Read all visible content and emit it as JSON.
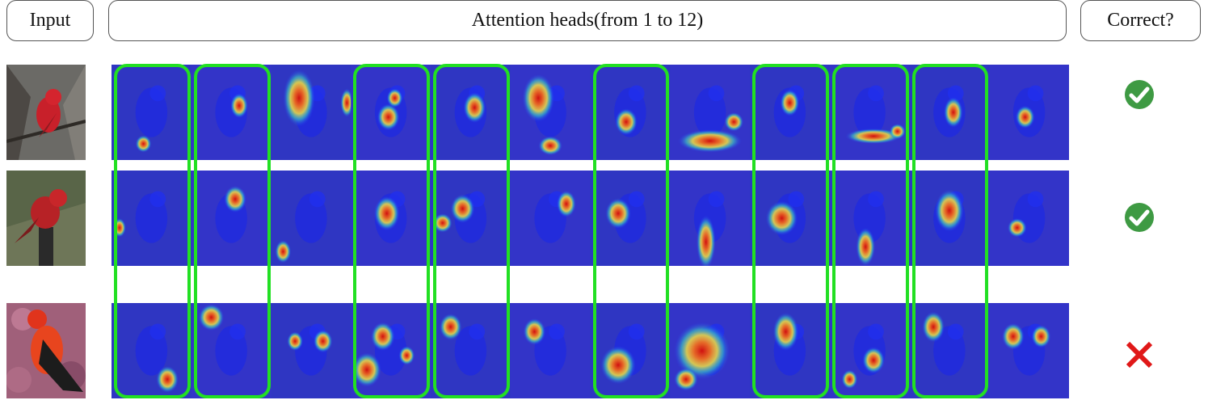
{
  "headers": {
    "input": "Input",
    "heads": "Attention heads(from 1 to 12)",
    "correct": "Correct?"
  },
  "heads_count": 12,
  "highlighted_heads": [
    1,
    2,
    4,
    5,
    7,
    9,
    10,
    11
  ],
  "rows": [
    {
      "name": "row-1",
      "correct": true,
      "thumb_bg": "#6b6a66",
      "hotspots": [
        [
          [
            0.4,
            0.83,
            0.1,
            0.09
          ]
        ],
        [
          [
            0.6,
            0.43,
            0.11,
            0.13
          ]
        ],
        [
          [
            0.35,
            0.35,
            0.2,
            0.3
          ],
          [
            0.95,
            0.4,
            0.08,
            0.15
          ]
        ],
        [
          [
            0.47,
            0.55,
            0.14,
            0.14
          ],
          [
            0.55,
            0.35,
            0.1,
            0.1
          ]
        ],
        [
          [
            0.55,
            0.45,
            0.14,
            0.16
          ]
        ],
        [
          [
            0.35,
            0.35,
            0.2,
            0.25
          ],
          [
            0.5,
            0.85,
            0.15,
            0.1
          ]
        ],
        [
          [
            0.45,
            0.6,
            0.14,
            0.14
          ]
        ],
        [
          [
            0.5,
            0.8,
            0.4,
            0.12
          ],
          [
            0.8,
            0.6,
            0.12,
            0.1
          ]
        ],
        [
          [
            0.5,
            0.4,
            0.12,
            0.14
          ]
        ],
        [
          [
            0.55,
            0.75,
            0.35,
            0.08
          ],
          [
            0.85,
            0.7,
            0.1,
            0.08
          ]
        ],
        [
          [
            0.55,
            0.5,
            0.12,
            0.16
          ]
        ],
        [
          [
            0.45,
            0.55,
            0.12,
            0.12
          ]
        ]
      ]
    },
    {
      "name": "row-2",
      "correct": true,
      "thumb_bg": "#6e7658",
      "hotspots": [
        [
          [
            0.1,
            0.6,
            0.08,
            0.1
          ]
        ],
        [
          [
            0.55,
            0.3,
            0.14,
            0.14
          ]
        ],
        [
          [
            0.15,
            0.85,
            0.1,
            0.12
          ]
        ],
        [
          [
            0.45,
            0.45,
            0.16,
            0.18
          ]
        ],
        [
          [
            0.15,
            0.55,
            0.12,
            0.1
          ],
          [
            0.4,
            0.4,
            0.15,
            0.15
          ]
        ],
        [
          [
            0.7,
            0.35,
            0.12,
            0.14
          ]
        ],
        [
          [
            0.35,
            0.45,
            0.16,
            0.16
          ]
        ],
        [
          [
            0.45,
            0.75,
            0.12,
            0.28
          ]
        ],
        [
          [
            0.4,
            0.5,
            0.2,
            0.18
          ]
        ],
        [
          [
            0.45,
            0.8,
            0.12,
            0.2
          ]
        ],
        [
          [
            0.5,
            0.42,
            0.18,
            0.22
          ]
        ],
        [
          [
            0.35,
            0.6,
            0.12,
            0.1
          ]
        ]
      ]
    },
    {
      "name": "row-3",
      "correct": false,
      "thumb_bg": "#a0607a",
      "hotspots": [
        [
          [
            0.7,
            0.8,
            0.14,
            0.14
          ]
        ],
        [
          [
            0.25,
            0.15,
            0.16,
            0.14
          ]
        ],
        [
          [
            0.65,
            0.4,
            0.12,
            0.12
          ],
          [
            0.3,
            0.4,
            0.1,
            0.1
          ]
        ],
        [
          [
            0.4,
            0.35,
            0.15,
            0.15
          ],
          [
            0.2,
            0.7,
            0.18,
            0.18
          ],
          [
            0.7,
            0.55,
            0.1,
            0.1
          ]
        ],
        [
          [
            0.25,
            0.25,
            0.14,
            0.14
          ]
        ],
        [
          [
            0.3,
            0.3,
            0.14,
            0.14
          ]
        ],
        [
          [
            0.35,
            0.65,
            0.22,
            0.2
          ]
        ],
        [
          [
            0.4,
            0.5,
            0.35,
            0.3
          ],
          [
            0.2,
            0.8,
            0.15,
            0.12
          ]
        ],
        [
          [
            0.45,
            0.3,
            0.16,
            0.2
          ]
        ],
        [
          [
            0.55,
            0.6,
            0.14,
            0.14
          ],
          [
            0.25,
            0.8,
            0.1,
            0.1
          ]
        ],
        [
          [
            0.3,
            0.25,
            0.14,
            0.16
          ]
        ],
        [
          [
            0.3,
            0.35,
            0.14,
            0.14
          ],
          [
            0.65,
            0.35,
            0.12,
            0.12
          ]
        ]
      ]
    }
  ]
}
